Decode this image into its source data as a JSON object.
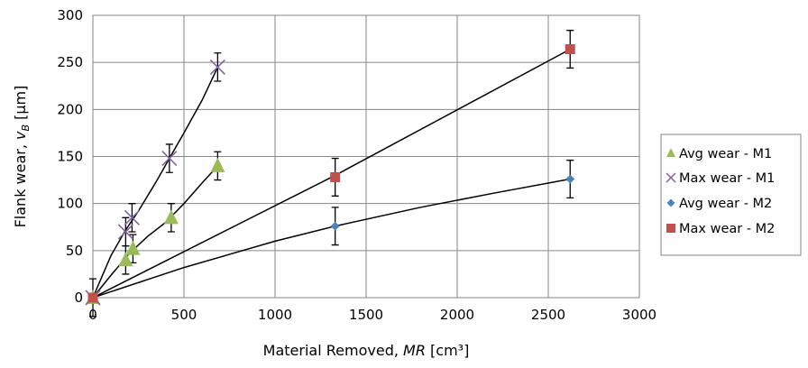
{
  "chart_data": {
    "type": "scatter",
    "xlabel": "Material Removed, MR [cm³]",
    "xlabel_parts": {
      "prefix": "Material Removed, ",
      "italic": "MR",
      "suffix": " [cm³]"
    },
    "ylabel": "Flank wear, vB [µm]",
    "ylabel_parts": {
      "prefix": "Flank wear, ",
      "italic": "v",
      "sub": "B",
      "suffix": " [µm]"
    },
    "xlim": [
      0,
      3000
    ],
    "ylim": [
      0,
      300
    ],
    "xticks": [
      "0",
      "500",
      "1000",
      "1500",
      "2000",
      "2500",
      "3000"
    ],
    "yticks": [
      "0",
      "50",
      "100",
      "150",
      "200",
      "250",
      "300"
    ],
    "grid": true,
    "legend_position": "right",
    "series": [
      {
        "name": "Avg wear - M1",
        "marker": "triangle",
        "color": "#9BBB59",
        "x": [
          0,
          180,
          220,
          430,
          685
        ],
        "y": [
          0,
          40,
          52,
          85,
          140
        ],
        "err": [
          0,
          15,
          15,
          15,
          15
        ]
      },
      {
        "name": "Max wear - M1",
        "marker": "x",
        "color": "#8064A2",
        "x": [
          0,
          180,
          215,
          420,
          685
        ],
        "y": [
          0,
          70,
          85,
          148,
          245
        ],
        "err": [
          20,
          15,
          15,
          15,
          15
        ]
      },
      {
        "name": "Avg wear - M2",
        "marker": "diamond",
        "color": "#4F81BD",
        "x": [
          0,
          1330,
          2620
        ],
        "y": [
          0,
          76,
          126
        ],
        "err": [
          0,
          20,
          20
        ]
      },
      {
        "name": "Max wear - M2",
        "marker": "square",
        "color": "#C0504D",
        "x": [
          0,
          1330,
          2620
        ],
        "y": [
          0,
          128,
          264
        ],
        "err": [
          0,
          20,
          20
        ]
      }
    ],
    "trendlines": [
      {
        "for": "Avg wear - M1",
        "x": [
          0,
          100,
          200,
          300,
          400,
          500,
          600,
          685
        ],
        "y": [
          0,
          24,
          47,
          65,
          80,
          100,
          122,
          140
        ]
      },
      {
        "for": "Max wear - M1",
        "x": [
          0,
          100,
          180,
          250,
          350,
          420,
          500,
          600,
          685
        ],
        "y": [
          0,
          45,
          72,
          92,
          124,
          148,
          175,
          210,
          245
        ]
      },
      {
        "for": "Avg wear - M2",
        "x": [
          0,
          500,
          1000,
          1330,
          1800,
          2200,
          2620
        ],
        "y": [
          0,
          32,
          60,
          76,
          96,
          111,
          126
        ]
      },
      {
        "for": "Max wear - M2",
        "x": [
          0,
          1330,
          2620
        ],
        "y": [
          0,
          130,
          264
        ]
      }
    ]
  }
}
